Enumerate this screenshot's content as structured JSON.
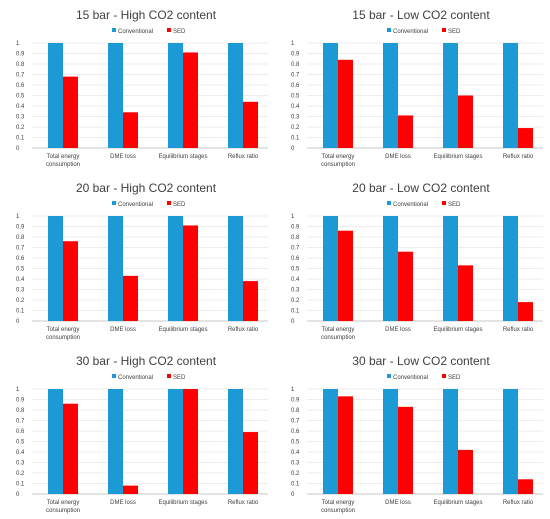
{
  "colors": {
    "conventional": "#1b9ad6",
    "sed": "#ff0000",
    "grid": "#d9d9d9",
    "axis": "#bfbfbf",
    "text": "#404040"
  },
  "chart_data": [
    {
      "type": "bar",
      "title": "15 bar - High CO2 content",
      "categories": [
        [
          "Total energy",
          "consumption"
        ],
        [
          "DME loss"
        ],
        [
          "Equilibrium stages"
        ],
        [
          "Reflux ratio"
        ]
      ],
      "series": [
        {
          "name": "Conventional",
          "values": [
            1,
            1,
            1,
            1
          ]
        },
        {
          "name": "SED",
          "values": [
            0.68,
            0.34,
            0.91,
            0.44
          ]
        }
      ],
      "ylim": [
        0,
        1
      ],
      "yticks": [
        "0",
        "0.1",
        "0.2",
        "0.3",
        "0.4",
        "0.5",
        "0.6",
        "0.7",
        "0.8",
        "0.9",
        "1"
      ],
      "grid": true,
      "legend": "top"
    },
    {
      "type": "bar",
      "title": "15 bar - Low CO2 content",
      "categories": [
        [
          "Total energy",
          "consumption"
        ],
        [
          "DME loss"
        ],
        [
          "Equilibrium stages"
        ],
        [
          "Reflux ratio"
        ]
      ],
      "series": [
        {
          "name": "Conventional",
          "values": [
            1,
            1,
            1,
            1
          ]
        },
        {
          "name": "SED",
          "values": [
            0.84,
            0.31,
            0.5,
            0.19
          ]
        }
      ],
      "ylim": [
        0,
        1
      ],
      "yticks": [
        "0",
        "0.1",
        "0.2",
        "0.3",
        "0.4",
        "0.5",
        "0.6",
        "0.7",
        "0.8",
        "0.9",
        "1"
      ],
      "grid": true,
      "legend": "top"
    },
    {
      "type": "bar",
      "title": "20 bar - High CO2 content",
      "categories": [
        [
          "Total energy",
          "consumption"
        ],
        [
          "DME loss"
        ],
        [
          "Equilibrium stages"
        ],
        [
          "Reflux ratio"
        ]
      ],
      "series": [
        {
          "name": "Conventional",
          "values": [
            1,
            1,
            1,
            1
          ]
        },
        {
          "name": "SED",
          "values": [
            0.76,
            0.43,
            0.91,
            0.38
          ]
        }
      ],
      "ylim": [
        0,
        1
      ],
      "yticks": [
        "0",
        "0.1",
        "0.2",
        "0.3",
        "0.4",
        "0.5",
        "0.6",
        "0.7",
        "0.8",
        "0.9",
        "1"
      ],
      "grid": true,
      "legend": "top"
    },
    {
      "type": "bar",
      "title": "20 bar - Low CO2 content",
      "categories": [
        [
          "Total energy",
          "consumption"
        ],
        [
          "DME loss"
        ],
        [
          "Equilibrium stages"
        ],
        [
          "Reflux ratio"
        ]
      ],
      "series": [
        {
          "name": "Conventional",
          "values": [
            1,
            1,
            1,
            1
          ]
        },
        {
          "name": "SED",
          "values": [
            0.86,
            0.66,
            0.53,
            0.18
          ]
        }
      ],
      "ylim": [
        0,
        1
      ],
      "yticks": [
        "0",
        "0.1",
        "0.2",
        "0.3",
        "0.4",
        "0.5",
        "0.6",
        "0.7",
        "0.8",
        "0.9",
        "1"
      ],
      "grid": true,
      "legend": "top"
    },
    {
      "type": "bar",
      "title": "30 bar - High CO2 content",
      "categories": [
        [
          "Total energy",
          "consumption"
        ],
        [
          "DME loss"
        ],
        [
          "Equilibrium stages"
        ],
        [
          "Reflux ratio"
        ]
      ],
      "series": [
        {
          "name": "Conventional",
          "values": [
            1,
            1,
            1,
            1
          ]
        },
        {
          "name": "SED",
          "values": [
            0.86,
            0.08,
            1.0,
            0.59
          ]
        }
      ],
      "ylim": [
        0,
        1
      ],
      "yticks": [
        "0",
        "0.1",
        "0.2",
        "0.3",
        "0.4",
        "0.5",
        "0.6",
        "0.7",
        "0.8",
        "0.9",
        "1"
      ],
      "grid": true,
      "legend": "top"
    },
    {
      "type": "bar",
      "title": "30 bar - Low CO2 content",
      "categories": [
        [
          "Total energy",
          "consumption"
        ],
        [
          "DME loss"
        ],
        [
          "Equilibrium stages"
        ],
        [
          "Reflux ratio"
        ]
      ],
      "series": [
        {
          "name": "Conventional",
          "values": [
            1,
            1,
            1,
            1
          ]
        },
        {
          "name": "SED",
          "values": [
            0.93,
            0.83,
            0.42,
            0.14
          ]
        }
      ],
      "ylim": [
        0,
        1
      ],
      "yticks": [
        "0",
        "0.1",
        "0.2",
        "0.3",
        "0.4",
        "0.5",
        "0.6",
        "0.7",
        "0.8",
        "0.9",
        "1"
      ],
      "grid": true,
      "legend": "top"
    }
  ]
}
